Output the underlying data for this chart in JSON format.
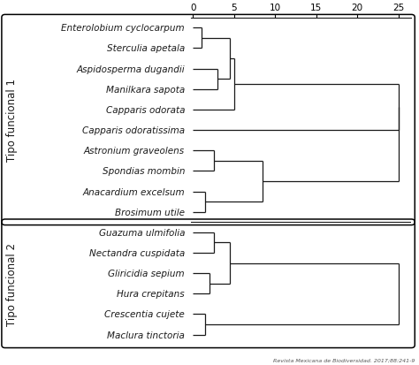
{
  "group1_species": [
    "Enterolobium cyclocarpum",
    "Sterculia apetala",
    "Aspidosperma dugandii",
    "Manilkara sapota",
    "Capparis odorata",
    "Capparis odoratissima",
    "Astronium graveolens",
    "Spondias mombin",
    "Anacardium excelsum",
    "Brosimum utile"
  ],
  "group2_species": [
    "Guazuma ulmifolia",
    "Nectandra cuspidata",
    "Gliricidia sepium",
    "Hura crepitans",
    "Crescentia cujete",
    "Maclura tinctoria"
  ],
  "label1": "Tipo funcional 1",
  "label2": "Tipo funcional 2",
  "xticks": [
    0,
    5,
    10,
    15,
    20,
    25
  ],
  "footnote": "Revista Mexicana de Biodiversidad. 2017;88:241-9",
  "bg_color": "#ffffff",
  "line_color": "#1a1a1a",
  "text_color": "#1a1a1a",
  "fontsize_species": 7.5,
  "fontsize_axis": 7.5,
  "fontsize_label": 8.5,
  "g1_d01": 1.0,
  "g1_d23": 3.0,
  "g1_d0123": 4.5,
  "g1_d01234": 5.0,
  "g1_d_big": 25.0,
  "g1_d67": 2.5,
  "g1_d89": 1.5,
  "g1_d6789": 8.5,
  "g2_d01": 2.5,
  "g2_d23": 2.0,
  "g2_d0123": 4.5,
  "g2_d45": 1.5,
  "g2_d_big": 25.0
}
